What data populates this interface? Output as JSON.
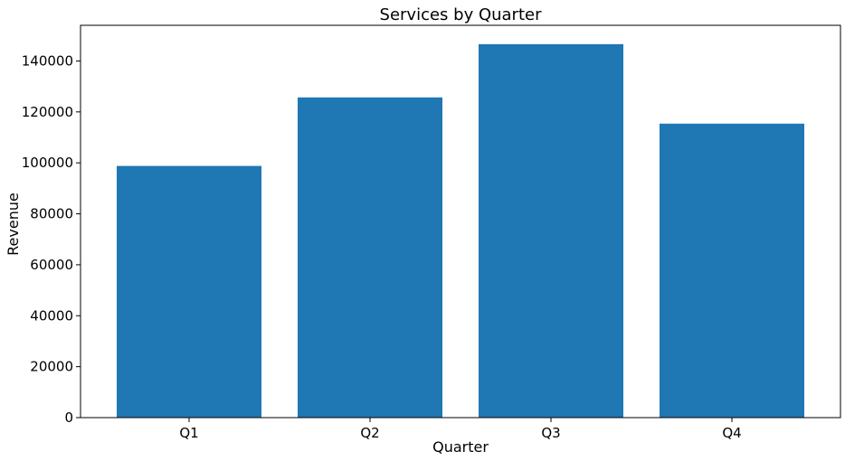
{
  "chart_data": {
    "type": "bar",
    "title": "Services by Quarter",
    "xlabel": "Quarter",
    "ylabel": "Revenue",
    "categories": [
      "Q1",
      "Q2",
      "Q3",
      "Q4"
    ],
    "values": [
      98800,
      125700,
      146600,
      115400
    ],
    "ylim": [
      0,
      154000
    ],
    "yticks": [
      0,
      20000,
      40000,
      60000,
      80000,
      100000,
      120000,
      140000
    ],
    "ytick_labels": [
      "0",
      "20000",
      "40000",
      "60000",
      "80000",
      "100000",
      "120000",
      "140000"
    ],
    "bar_color": "#1f77b4",
    "grid": false,
    "legend": "none"
  }
}
